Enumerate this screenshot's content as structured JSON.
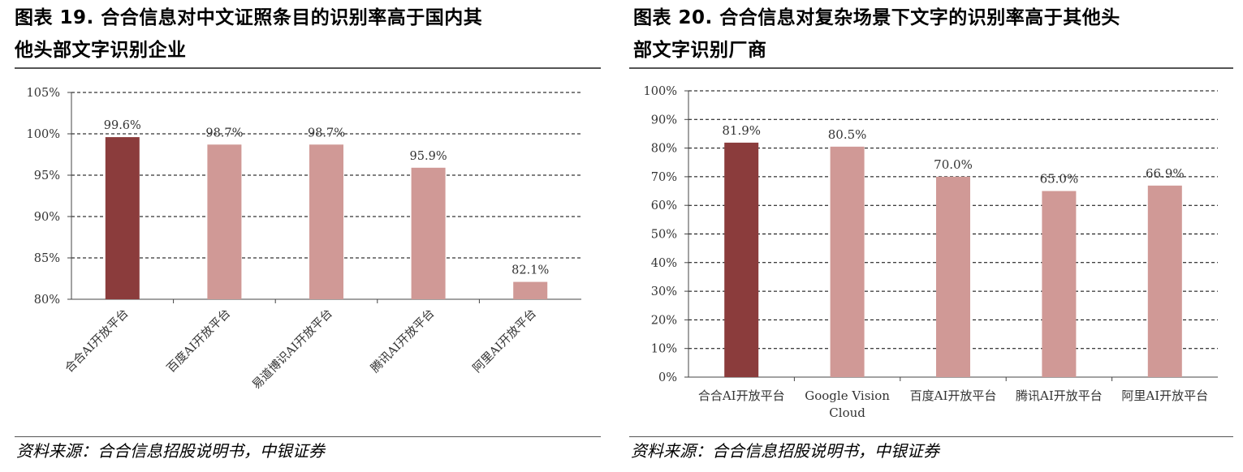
{
  "charts": [
    {
      "id": "chart19",
      "title_lines": [
        "图表 19. 合合信息对中文证照条目的识别率高于国内其",
        "他头部文字识别企业"
      ],
      "source": "资料来源：合合信息招股说明书，中银证券"
    },
    {
      "id": "chart20",
      "title_lines": [
        "图表 20. 合合信息对复杂场景下文字的识别率高于其他头",
        "部文字识别厂商"
      ],
      "source": "资料来源：合合信息招股说明书，中银证券"
    }
  ],
  "chart_data": [
    {
      "type": "bar",
      "categories": [
        "合合AI开放平台",
        "百度AI开放平台",
        "易道博识AI开放平台",
        "腾讯AI开放平台",
        "阿里AI开放平台"
      ],
      "values": [
        99.6,
        98.7,
        98.7,
        95.9,
        82.1
      ],
      "value_labels": [
        "99.6%",
        "98.7%",
        "98.7%",
        "95.9%",
        "82.1%"
      ],
      "yticks": [
        "80%",
        "85%",
        "90%",
        "95%",
        "100%",
        "105%"
      ],
      "ylim": [
        80,
        105
      ],
      "ystep": 5,
      "grid": true,
      "grid_style": "dashed",
      "bar_colors": [
        "#8B3C3C",
        "#D09996",
        "#D09996",
        "#D09996",
        "#D09996"
      ],
      "xlabel_rotation": -45
    },
    {
      "type": "bar",
      "categories": [
        "合合AI开放平台",
        "Google Vision Cloud",
        "百度AI开放平台",
        "腾讯AI开放平台",
        "阿里AI开放平台"
      ],
      "category_lines": [
        [
          "合合AI开放平台"
        ],
        [
          "Google Vision",
          "Cloud"
        ],
        [
          "百度AI开放平台"
        ],
        [
          "腾讯AI开放平台"
        ],
        [
          "阿里AI开放平台"
        ]
      ],
      "values": [
        81.9,
        80.5,
        70.0,
        65.0,
        66.9
      ],
      "value_labels": [
        "81.9%",
        "80.5%",
        "70.0%",
        "65.0%",
        "66.9%"
      ],
      "yticks": [
        "0%",
        "10%",
        "20%",
        "30%",
        "40%",
        "50%",
        "60%",
        "70%",
        "80%",
        "90%",
        "100%"
      ],
      "ylim": [
        0,
        100
      ],
      "ystep": 10,
      "grid": true,
      "grid_style": "dashed",
      "bar_colors": [
        "#8B3C3C",
        "#D09996",
        "#D09996",
        "#D09996",
        "#D09996"
      ],
      "xlabel_rotation": 0
    }
  ]
}
